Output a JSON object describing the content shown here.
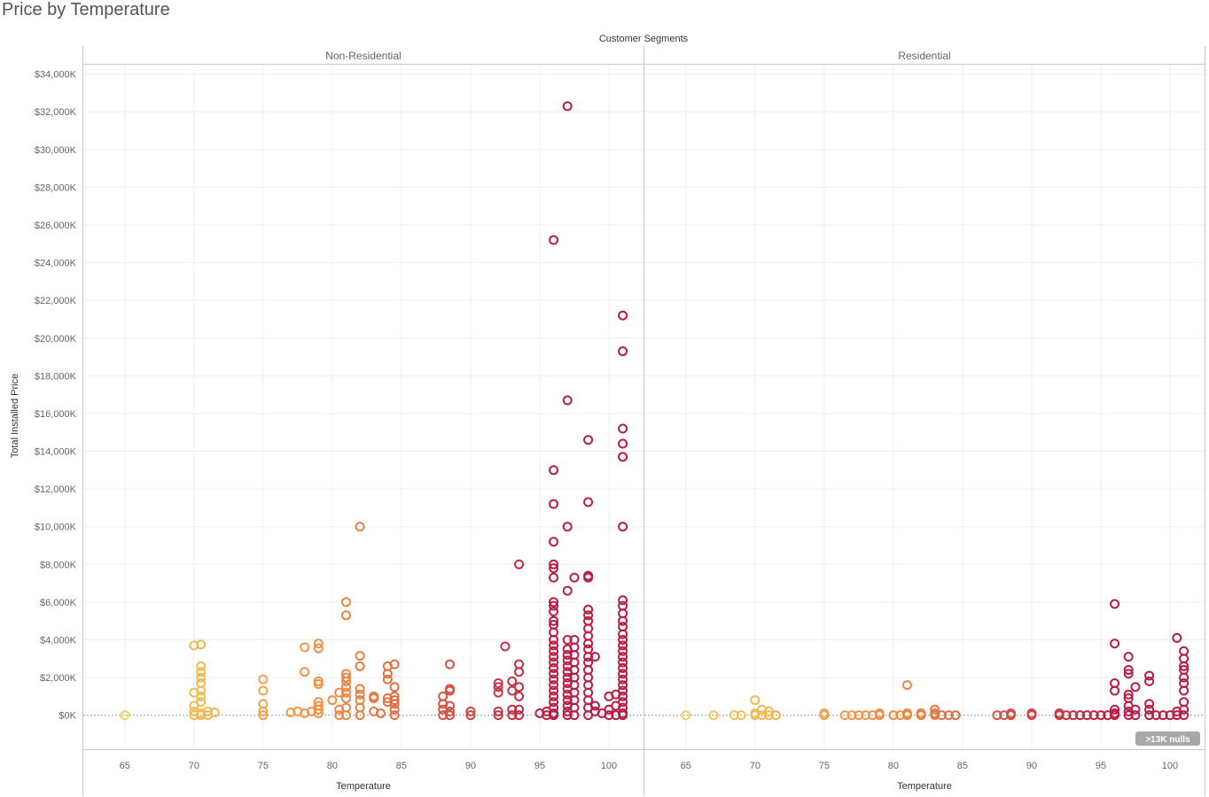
{
  "page_title": "Price by Temperature",
  "chart_data": {
    "type": "scatter",
    "title": "Price by Temperature",
    "facet_label": "Customer Segments",
    "xlabel": "Temperature",
    "ylabel": "Total Installed Price",
    "xlim": [
      62,
      102.5
    ],
    "ylim": [
      -1800,
      34500
    ],
    "x_ticks": [
      65,
      70,
      75,
      80,
      85,
      90,
      95,
      100
    ],
    "y_ticks": [
      0,
      2000,
      4000,
      6000,
      8000,
      10000,
      12000,
      14000,
      16000,
      18000,
      20000,
      22000,
      24000,
      26000,
      28000,
      30000,
      32000,
      34000
    ],
    "y_tick_labels": [
      "$0K",
      "$2,000K",
      "$4,000K",
      "$6,000K",
      "$8,000K",
      "$10,000K",
      "$12,000K",
      "$14,000K",
      "$16,000K",
      "$18,000K",
      "$20,000K",
      "$22,000K",
      "$24,000K",
      "$26,000K",
      "$28,000K",
      "$30,000K",
      "$32,000K",
      "$34,000K"
    ],
    "grid": true,
    "marker": "open-circle",
    "color_scale": {
      "low_value": 65,
      "high_value": 96,
      "low_color": "#f2d35c",
      "mid_color": "#ee8a45",
      "high_color": "#b81d44"
    },
    "nulls_badge": ">13K nulls",
    "panels": [
      {
        "name": "Non-Residential",
        "points": [
          [
            65,
            0
          ],
          [
            70,
            3700
          ],
          [
            70.5,
            3750
          ],
          [
            70.5,
            2600
          ],
          [
            70.5,
            2300
          ],
          [
            70.5,
            2000
          ],
          [
            70.5,
            1700
          ],
          [
            70.5,
            1300
          ],
          [
            70.5,
            1000
          ],
          [
            70.5,
            700
          ],
          [
            70,
            1200
          ],
          [
            70,
            500
          ],
          [
            70,
            200
          ],
          [
            70.5,
            100
          ],
          [
            70,
            0
          ],
          [
            70.5,
            0
          ],
          [
            71,
            0
          ],
          [
            71,
            200
          ],
          [
            71.5,
            150
          ],
          [
            75,
            1900
          ],
          [
            75,
            1300
          ],
          [
            75,
            600
          ],
          [
            75,
            200
          ],
          [
            75,
            0
          ],
          [
            77,
            150
          ],
          [
            77.5,
            200
          ],
          [
            78,
            100
          ],
          [
            78,
            3600
          ],
          [
            78,
            2300
          ],
          [
            78.5,
            200
          ],
          [
            79,
            3800
          ],
          [
            79,
            3550
          ],
          [
            79,
            1800
          ],
          [
            79,
            1650
          ],
          [
            79,
            700
          ],
          [
            79,
            500
          ],
          [
            79,
            300
          ],
          [
            79,
            100
          ],
          [
            80,
            800
          ],
          [
            80.5,
            1200
          ],
          [
            80.5,
            300
          ],
          [
            80.5,
            0
          ],
          [
            81,
            6000
          ],
          [
            81,
            5300
          ],
          [
            81,
            2200
          ],
          [
            81,
            2000
          ],
          [
            81,
            1800
          ],
          [
            81,
            1500
          ],
          [
            81,
            1200
          ],
          [
            81,
            900
          ],
          [
            81,
            400
          ],
          [
            81,
            0
          ],
          [
            82,
            10000
          ],
          [
            82,
            3150
          ],
          [
            82,
            2600
          ],
          [
            82,
            1400
          ],
          [
            82,
            1100
          ],
          [
            82,
            800
          ],
          [
            82,
            400
          ],
          [
            82,
            0
          ],
          [
            83,
            1000
          ],
          [
            83,
            900
          ],
          [
            83,
            200
          ],
          [
            83.5,
            100
          ],
          [
            84,
            2600
          ],
          [
            84,
            2200
          ],
          [
            84,
            1900
          ],
          [
            84,
            900
          ],
          [
            84,
            700
          ],
          [
            84.5,
            2700
          ],
          [
            84.5,
            1500
          ],
          [
            84.5,
            1000
          ],
          [
            84.5,
            800
          ],
          [
            84.5,
            600
          ],
          [
            84.5,
            300
          ],
          [
            84.5,
            0
          ],
          [
            88,
            1000
          ],
          [
            88,
            600
          ],
          [
            88,
            300
          ],
          [
            88,
            0
          ],
          [
            88.5,
            2700
          ],
          [
            88.5,
            1400
          ],
          [
            88.5,
            1300
          ],
          [
            88.5,
            500
          ],
          [
            88.5,
            200
          ],
          [
            88.5,
            0
          ],
          [
            90,
            200
          ],
          [
            90,
            0
          ],
          [
            92,
            1700
          ],
          [
            92,
            1500
          ],
          [
            92,
            1200
          ],
          [
            92,
            200
          ],
          [
            92,
            0
          ],
          [
            92.5,
            3650
          ],
          [
            93,
            1800
          ],
          [
            93,
            1300
          ],
          [
            93,
            300
          ],
          [
            93,
            0
          ],
          [
            93.5,
            8000
          ],
          [
            93.5,
            2700
          ],
          [
            93.5,
            2300
          ],
          [
            93.5,
            1500
          ],
          [
            93.5,
            1000
          ],
          [
            93.5,
            300
          ],
          [
            93.5,
            0
          ],
          [
            95,
            100
          ],
          [
            95.5,
            200
          ],
          [
            95.5,
            0
          ],
          [
            96,
            25200
          ],
          [
            96,
            13000
          ],
          [
            96,
            11200
          ],
          [
            96,
            9200
          ],
          [
            96,
            8000
          ],
          [
            96,
            7800
          ],
          [
            96,
            7300
          ],
          [
            96,
            6000
          ],
          [
            96,
            5800
          ],
          [
            96,
            5500
          ],
          [
            96,
            5000
          ],
          [
            96,
            4800
          ],
          [
            96,
            4400
          ],
          [
            96,
            4000
          ],
          [
            96,
            3700
          ],
          [
            96,
            3400
          ],
          [
            96,
            3100
          ],
          [
            96,
            2800
          ],
          [
            96,
            2500
          ],
          [
            96,
            2200
          ],
          [
            96,
            1900
          ],
          [
            96,
            1600
          ],
          [
            96,
            1300
          ],
          [
            96,
            1000
          ],
          [
            96,
            700
          ],
          [
            96,
            400
          ],
          [
            96,
            100
          ],
          [
            96,
            0
          ],
          [
            97,
            32300
          ],
          [
            97,
            16700
          ],
          [
            97,
            10000
          ],
          [
            97,
            6600
          ],
          [
            97,
            4000
          ],
          [
            97,
            3500
          ],
          [
            97,
            3200
          ],
          [
            97,
            2900
          ],
          [
            97,
            2600
          ],
          [
            97,
            2300
          ],
          [
            97,
            2000
          ],
          [
            97,
            1700
          ],
          [
            97,
            1400
          ],
          [
            97,
            1100
          ],
          [
            97,
            800
          ],
          [
            97,
            500
          ],
          [
            97,
            200
          ],
          [
            97,
            0
          ],
          [
            97.5,
            7300
          ],
          [
            97.5,
            4000
          ],
          [
            97.5,
            3600
          ],
          [
            97.5,
            3200
          ],
          [
            97.5,
            2800
          ],
          [
            97.5,
            2400
          ],
          [
            97.5,
            2000
          ],
          [
            97.5,
            1600
          ],
          [
            97.5,
            1200
          ],
          [
            97.5,
            800
          ],
          [
            97.5,
            400
          ],
          [
            97.5,
            0
          ],
          [
            98.5,
            14600
          ],
          [
            98.5,
            11300
          ],
          [
            98.5,
            7400
          ],
          [
            98.5,
            7300
          ],
          [
            98.5,
            5600
          ],
          [
            98.5,
            5300
          ],
          [
            98.5,
            5000
          ],
          [
            98.5,
            4600
          ],
          [
            98.5,
            4200
          ],
          [
            98.5,
            3800
          ],
          [
            98.5,
            3500
          ],
          [
            98.5,
            3100
          ],
          [
            98.5,
            2800
          ],
          [
            98.5,
            2400
          ],
          [
            98.5,
            2000
          ],
          [
            98.5,
            1600
          ],
          [
            98.5,
            1200
          ],
          [
            98.5,
            800
          ],
          [
            98.5,
            400
          ],
          [
            98.5,
            0
          ],
          [
            99,
            3100
          ],
          [
            99,
            500
          ],
          [
            99,
            200
          ],
          [
            99.5,
            100
          ],
          [
            100,
            1000
          ],
          [
            100,
            300
          ],
          [
            100,
            0
          ],
          [
            100.5,
            1100
          ],
          [
            100.5,
            500
          ],
          [
            100.5,
            0
          ],
          [
            101,
            21200
          ],
          [
            101,
            19300
          ],
          [
            101,
            15200
          ],
          [
            101,
            14400
          ],
          [
            101,
            13700
          ],
          [
            101,
            10000
          ],
          [
            101,
            6100
          ],
          [
            101,
            5800
          ],
          [
            101,
            5400
          ],
          [
            101,
            5000
          ],
          [
            101,
            4700
          ],
          [
            101,
            4300
          ],
          [
            101,
            4000
          ],
          [
            101,
            3700
          ],
          [
            101,
            3400
          ],
          [
            101,
            3100
          ],
          [
            101,
            2800
          ],
          [
            101,
            2500
          ],
          [
            101,
            2200
          ],
          [
            101,
            1900
          ],
          [
            101,
            1600
          ],
          [
            101,
            1300
          ],
          [
            101,
            1000
          ],
          [
            101,
            700
          ],
          [
            101,
            400
          ],
          [
            101,
            100
          ],
          [
            101,
            0
          ]
        ]
      },
      {
        "name": "Residential",
        "points": [
          [
            65,
            0
          ],
          [
            67,
            0
          ],
          [
            68.5,
            0
          ],
          [
            69,
            0
          ],
          [
            70,
            800
          ],
          [
            70,
            100
          ],
          [
            70,
            0
          ],
          [
            70.5,
            300
          ],
          [
            70.5,
            0
          ],
          [
            71,
            200
          ],
          [
            71,
            0
          ],
          [
            71.5,
            0
          ],
          [
            75,
            0
          ],
          [
            75,
            100
          ],
          [
            76.5,
            0
          ],
          [
            77,
            0
          ],
          [
            77.5,
            0
          ],
          [
            78,
            0
          ],
          [
            78.5,
            0
          ],
          [
            79,
            0
          ],
          [
            79,
            100
          ],
          [
            80,
            0
          ],
          [
            80.5,
            0
          ],
          [
            81,
            1600
          ],
          [
            81,
            100
          ],
          [
            81,
            0
          ],
          [
            82,
            0
          ],
          [
            82,
            100
          ],
          [
            83,
            300
          ],
          [
            83,
            100
          ],
          [
            83,
            0
          ],
          [
            83.5,
            0
          ],
          [
            84,
            0
          ],
          [
            84.5,
            0
          ],
          [
            87.5,
            0
          ],
          [
            88,
            0
          ],
          [
            88.5,
            0
          ],
          [
            88.5,
            100
          ],
          [
            90,
            0
          ],
          [
            90,
            100
          ],
          [
            92,
            0
          ],
          [
            92,
            100
          ],
          [
            92.5,
            0
          ],
          [
            93,
            0
          ],
          [
            93.5,
            0
          ],
          [
            94,
            0
          ],
          [
            94.5,
            0
          ],
          [
            95,
            0
          ],
          [
            95.5,
            0
          ],
          [
            96,
            5900
          ],
          [
            96,
            3800
          ],
          [
            96,
            1700
          ],
          [
            96,
            1300
          ],
          [
            96,
            300
          ],
          [
            96,
            100
          ],
          [
            96,
            0
          ],
          [
            97,
            3100
          ],
          [
            97,
            2400
          ],
          [
            97,
            2200
          ],
          [
            97,
            1100
          ],
          [
            97,
            900
          ],
          [
            97,
            500
          ],
          [
            97,
            200
          ],
          [
            97,
            0
          ],
          [
            97.5,
            1500
          ],
          [
            97.5,
            300
          ],
          [
            97.5,
            0
          ],
          [
            98.5,
            2100
          ],
          [
            98.5,
            1800
          ],
          [
            98.5,
            600
          ],
          [
            98.5,
            300
          ],
          [
            98.5,
            0
          ],
          [
            99,
            0
          ],
          [
            99.5,
            0
          ],
          [
            100,
            0
          ],
          [
            100.5,
            4100
          ],
          [
            100.5,
            0
          ],
          [
            100.5,
            200
          ],
          [
            101,
            3400
          ],
          [
            101,
            3000
          ],
          [
            101,
            2600
          ],
          [
            101,
            2400
          ],
          [
            101,
            2000
          ],
          [
            101,
            1700
          ],
          [
            101,
            1300
          ],
          [
            101,
            700
          ],
          [
            101,
            300
          ],
          [
            101,
            0
          ]
        ]
      }
    ]
  }
}
